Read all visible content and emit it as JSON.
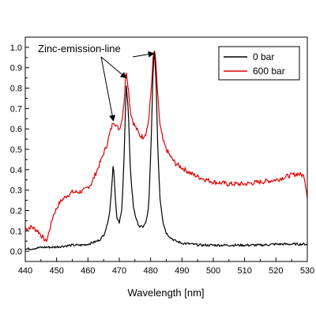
{
  "chart_data": {
    "type": "line",
    "title": "",
    "xlabel": "Wavelength [nm]",
    "ylabel": "",
    "xlim": [
      440,
      530
    ],
    "ylim": [
      -0.05,
      1.05
    ],
    "xticks": [
      440,
      450,
      460,
      470,
      480,
      490,
      500,
      510,
      520,
      530
    ],
    "yticks": [
      0.0,
      0.1,
      0.2,
      0.3,
      0.4,
      0.5,
      0.6,
      0.7,
      0.8,
      0.9,
      1.0
    ],
    "xtick_labels": [
      "440",
      "450",
      "460",
      "470",
      "480",
      "490",
      "500",
      "510",
      "520",
      "530"
    ],
    "ytick_labels": [
      "0.0",
      "0.1",
      "0.2",
      "0.3",
      "0.4",
      "0.5",
      "0.6",
      "0.7",
      "0.8",
      "0.9",
      "1.0"
    ],
    "grid": false,
    "legend_position": "top-right",
    "annotation": {
      "text": "Zinc-emission-line",
      "targets": [
        [
          468.1,
          0.64
        ],
        [
          472.2,
          0.85
        ],
        [
          481.0,
          0.97
        ]
      ]
    },
    "series": [
      {
        "name": "0 bar",
        "color": "#000000",
        "x": [
          440,
          443,
          446,
          449,
          452,
          455,
          458,
          460,
          462,
          463,
          464,
          465,
          466,
          467,
          467.6,
          468.1,
          468.6,
          469.2,
          470,
          470.8,
          471.5,
          472.2,
          472.9,
          473.6,
          474.5,
          475.5,
          476.5,
          477.5,
          478.5,
          479.4,
          480.2,
          480.8,
          481.2,
          481.7,
          482.3,
          483.0,
          484.0,
          485.0,
          486.5,
          488,
          490,
          493,
          496,
          500,
          505,
          510,
          515,
          520,
          525,
          530
        ],
        "y": [
          0.01,
          0.015,
          0.02,
          0.02,
          0.025,
          0.03,
          0.03,
          0.035,
          0.045,
          0.05,
          0.06,
          0.08,
          0.12,
          0.2,
          0.32,
          0.44,
          0.3,
          0.16,
          0.14,
          0.2,
          0.45,
          0.82,
          0.68,
          0.38,
          0.22,
          0.15,
          0.12,
          0.12,
          0.14,
          0.22,
          0.55,
          0.9,
          0.98,
          0.85,
          0.5,
          0.26,
          0.14,
          0.09,
          0.065,
          0.05,
          0.04,
          0.035,
          0.03,
          0.03,
          0.03,
          0.03,
          0.03,
          0.035,
          0.035,
          0.035
        ]
      },
      {
        "name": "600 bar",
        "color": "#e00000",
        "x": [
          440,
          442,
          444,
          445.5,
          446.5,
          447,
          448,
          449,
          451,
          453,
          455,
          457,
          459,
          461,
          463,
          464.5,
          466,
          467,
          467.6,
          468.1,
          468.6,
          469.2,
          470,
          470.8,
          471.5,
          472.2,
          472.9,
          473.6,
          474.5,
          475.5,
          476.5,
          477.5,
          478.5,
          479.4,
          480.2,
          480.8,
          481.2,
          481.7,
          482.3,
          483.0,
          484.0,
          485.0,
          486.5,
          488,
          490,
          493,
          496,
          500,
          505,
          510,
          515,
          520,
          524,
          527,
          529,
          530
        ],
        "y": [
          0.11,
          0.12,
          0.1,
          0.07,
          0.05,
          0.06,
          0.12,
          0.18,
          0.24,
          0.27,
          0.29,
          0.29,
          0.3,
          0.33,
          0.4,
          0.46,
          0.52,
          0.58,
          0.61,
          0.64,
          0.63,
          0.61,
          0.6,
          0.64,
          0.73,
          0.89,
          0.8,
          0.68,
          0.63,
          0.6,
          0.57,
          0.56,
          0.58,
          0.64,
          0.8,
          0.95,
          0.99,
          0.92,
          0.75,
          0.62,
          0.54,
          0.5,
          0.46,
          0.43,
          0.41,
          0.38,
          0.36,
          0.34,
          0.33,
          0.33,
          0.34,
          0.35,
          0.37,
          0.38,
          0.37,
          0.27
        ]
      }
    ]
  }
}
